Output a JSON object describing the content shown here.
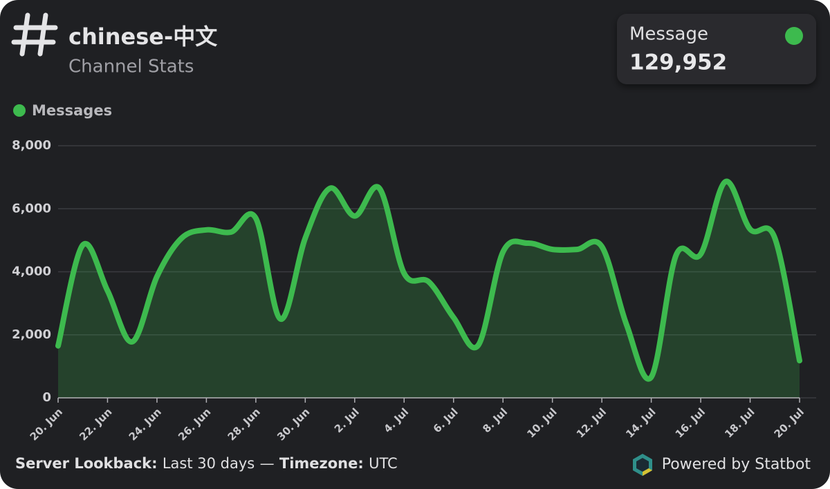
{
  "header": {
    "title": "chinese-中文",
    "subtitle": "Channel Stats"
  },
  "card": {
    "label": "Message",
    "value": "129,952"
  },
  "chart_data": {
    "type": "area",
    "categories": [
      "20. Jun",
      null,
      "22. Jun",
      null,
      "24. Jun",
      null,
      "26. Jun",
      null,
      "28. Jun",
      null,
      "30. Jun",
      null,
      "2. Jul",
      null,
      "4. Jul",
      null,
      "6. Jul",
      null,
      "8. Jul",
      null,
      "10. Jul",
      null,
      "12. Jul",
      null,
      "14. Jul",
      null,
      "16. Jul",
      null,
      "18. Jul",
      null,
      "20. Jul"
    ],
    "series": [
      {
        "name": "Messages",
        "color": "#3dba4e",
        "values": [
          1650,
          4850,
          3400,
          1780,
          3850,
          5070,
          5330,
          5260,
          5700,
          2500,
          5070,
          6650,
          5770,
          6650,
          3950,
          3680,
          2550,
          1670,
          4630,
          4910,
          4710,
          4710,
          4800,
          2320,
          660,
          4520,
          4560,
          6860,
          5350,
          5070,
          1180
        ]
      }
    ],
    "ylim": [
      0,
      8000
    ],
    "yticks": [
      0,
      {
        "value": 2000,
        "label": "2,000"
      },
      {
        "value": 4000,
        "label": "4,000"
      },
      {
        "value": 6000,
        "label": "6,000"
      },
      {
        "value": 8000,
        "label": "8,000"
      }
    ],
    "grid": true
  },
  "footer": {
    "lookback_label": "Server Lookback:",
    "lookback_value": "Last 30 days",
    "separator": "—",
    "timezone_label": "Timezone:",
    "timezone_value": "UTC",
    "credit": "Powered by Statbot"
  }
}
